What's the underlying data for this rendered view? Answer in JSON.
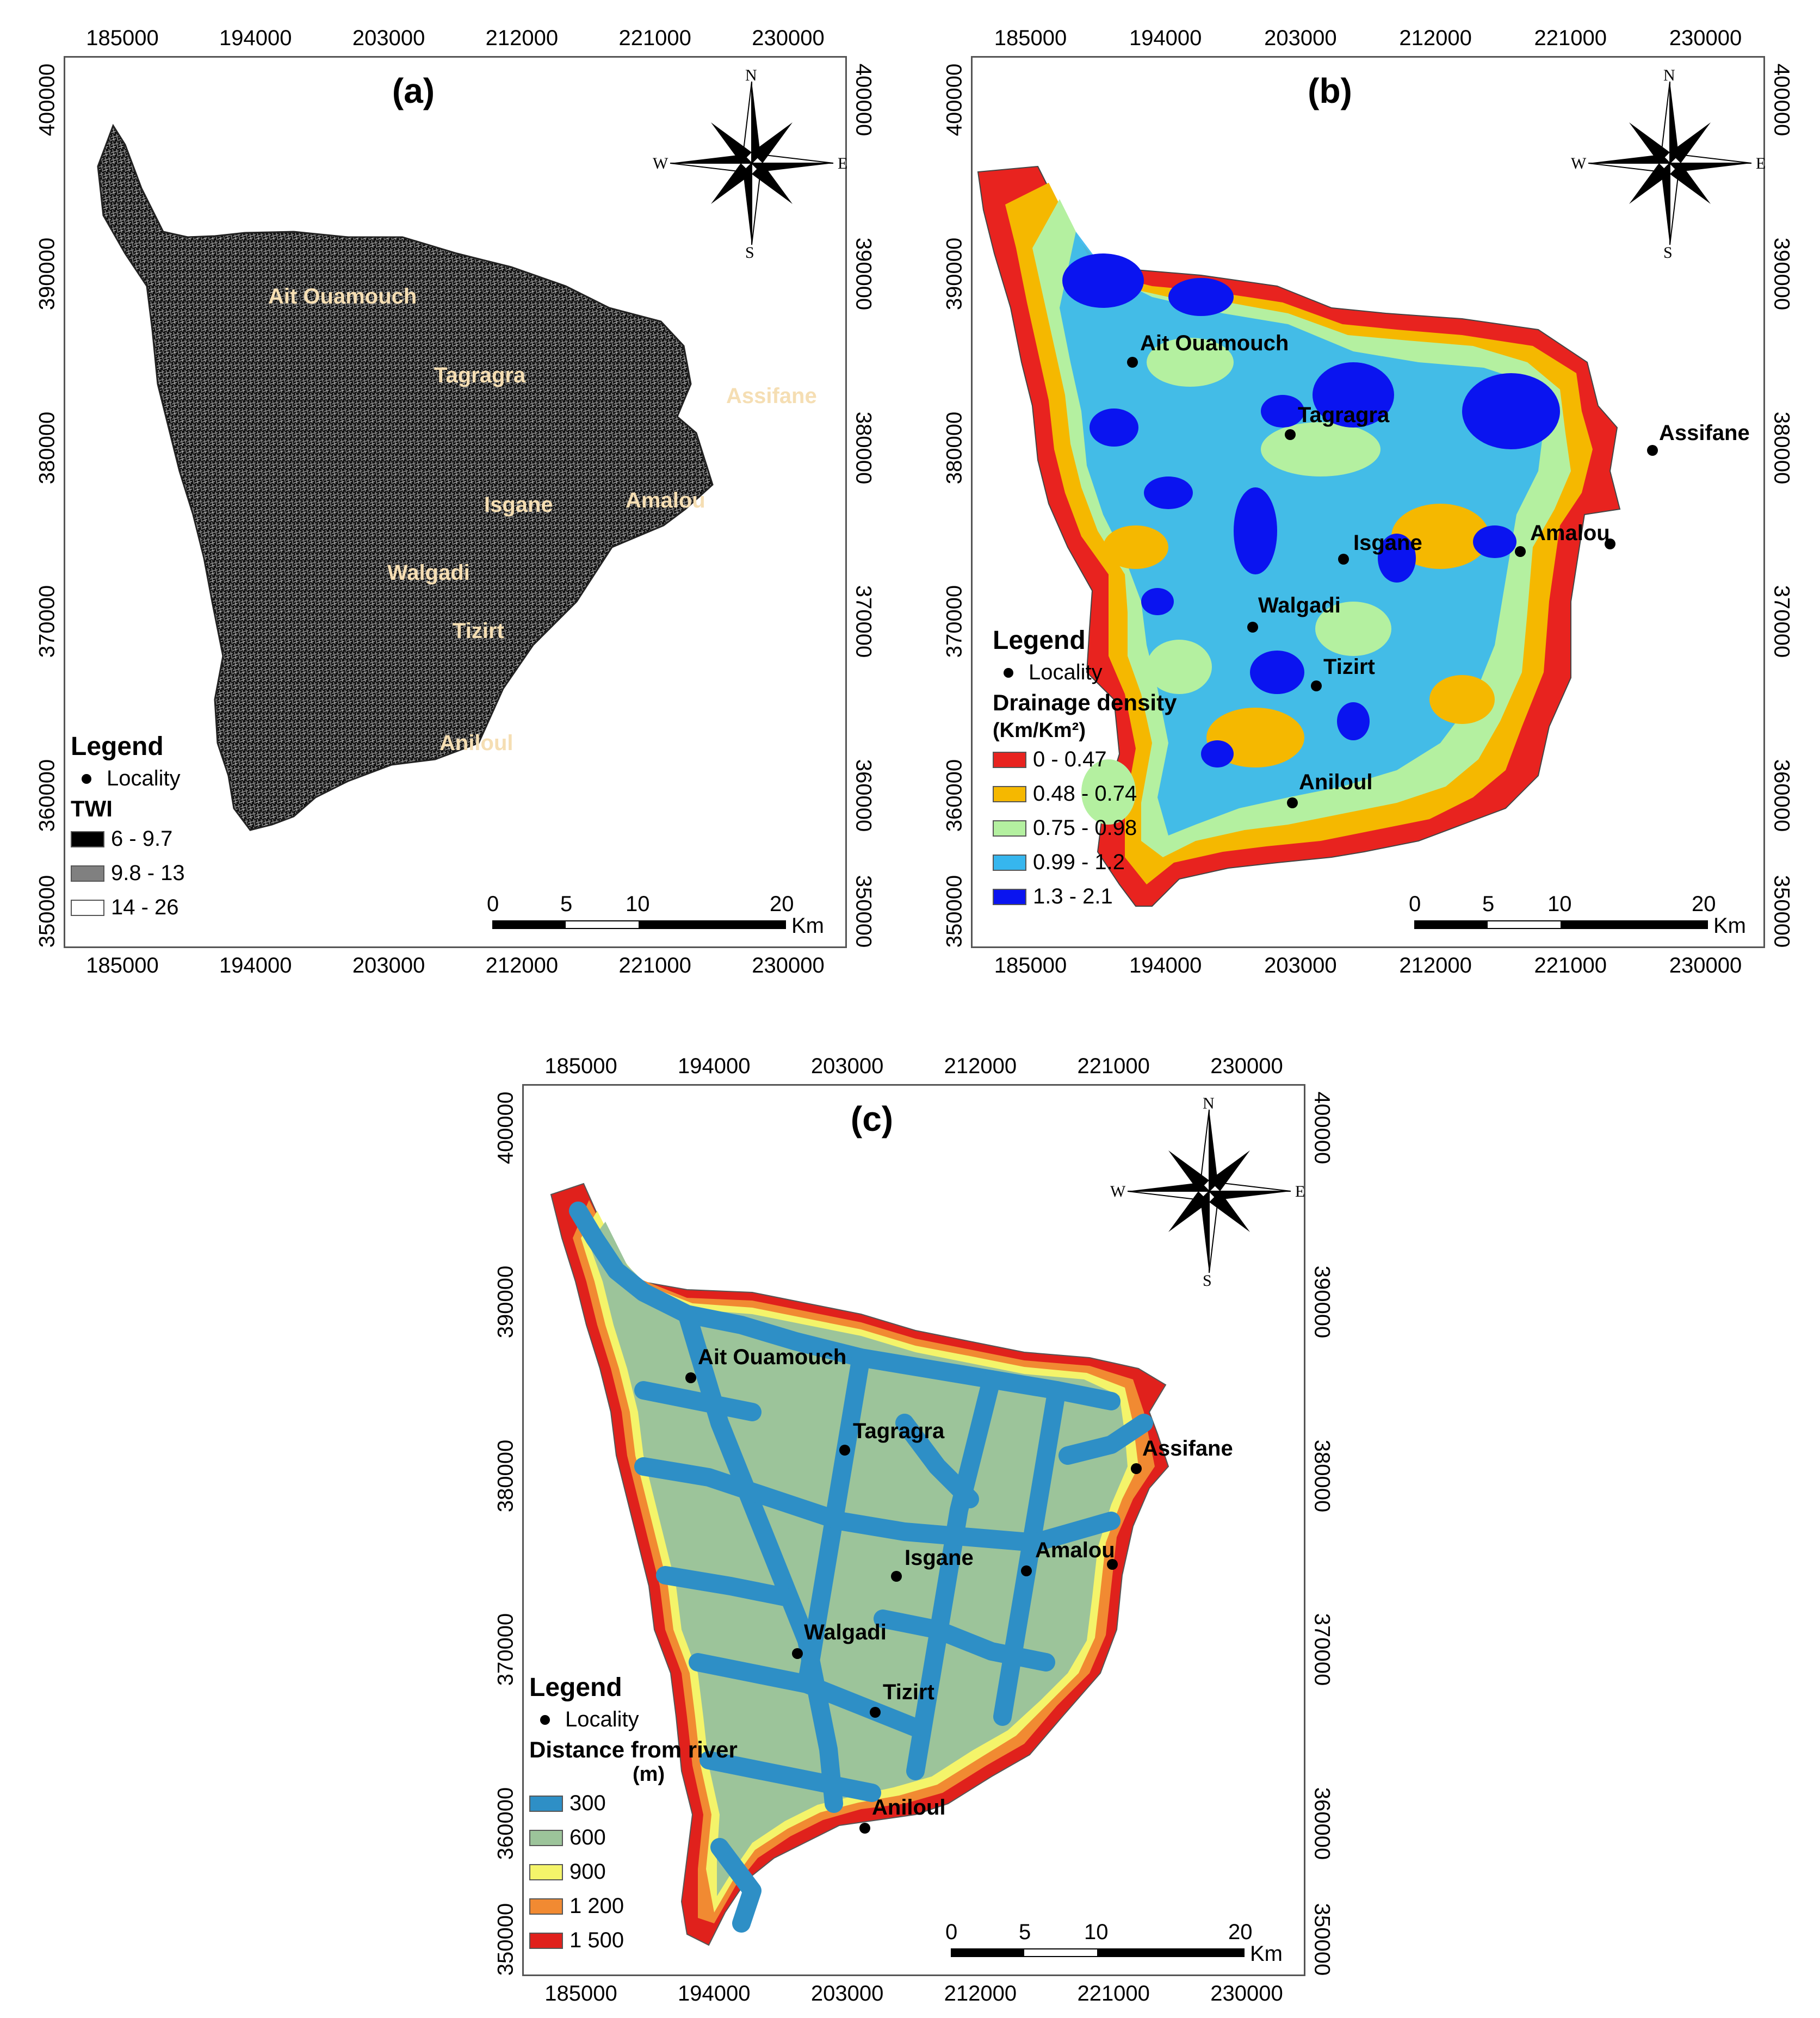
{
  "x_ticks": [
    "185000",
    "194000",
    "203000",
    "212000",
    "221000",
    "230000"
  ],
  "y_ticks": [
    "400000",
    "390000",
    "380000",
    "370000",
    "360000",
    "350000"
  ],
  "compass": {
    "n": "N",
    "s": "S",
    "e": "E",
    "w": "W"
  },
  "scale": {
    "labels": [
      "0",
      "5",
      "10",
      "20"
    ],
    "unit": "Km"
  },
  "locality_label": "Locality",
  "legend_title": "Legend",
  "places": [
    "Ait Ouamouch",
    "Tagragra",
    "Assifane",
    "Isgane",
    "Amalou",
    "Walgadi",
    "Tizirt",
    "Aniloul"
  ],
  "panel_a": {
    "title": "(a)",
    "variable": "TWI",
    "classes": [
      {
        "label": "6 - 9.7",
        "color": "#000000"
      },
      {
        "label": "9.8 - 13",
        "color": "#808080"
      },
      {
        "label": "14 - 26",
        "color": "#ffffff"
      }
    ]
  },
  "panel_b": {
    "title": "(b)",
    "variable": "Drainage density",
    "unit": "(Km/Km²)",
    "classes": [
      {
        "label": "0 - 0.47",
        "color": "#e8231f"
      },
      {
        "label": "0.48 - 0.74",
        "color": "#f5b800"
      },
      {
        "label": "0.75 - 0.98",
        "color": "#b4f0a0"
      },
      {
        "label": "0.99 - 1.2",
        "color": "#36b6ee"
      },
      {
        "label": "1.3 - 2.1",
        "color": "#0a14f0"
      }
    ]
  },
  "panel_c": {
    "title": "(c)",
    "variable": "Distance from river",
    "unit": "(m)",
    "classes": [
      {
        "label": "300",
        "color": "#2e8fc6"
      },
      {
        "label": "600",
        "color": "#9cc49a"
      },
      {
        "label": "900",
        "color": "#f4f46a"
      },
      {
        "label": "1 200",
        "color": "#f18a32"
      },
      {
        "label": "1 500",
        "color": "#e0211c"
      }
    ]
  }
}
